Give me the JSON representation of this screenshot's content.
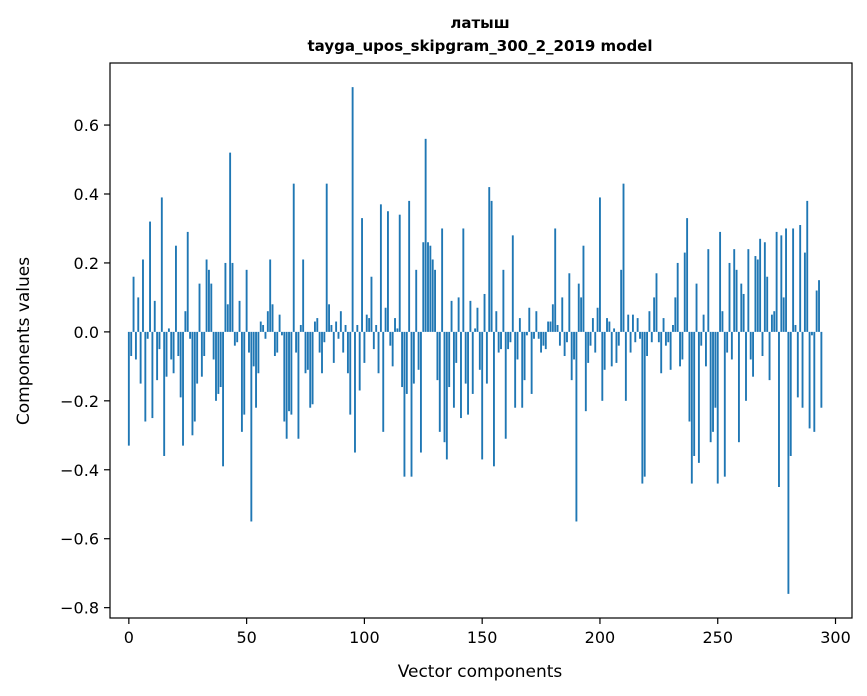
{
  "chart_data": {
    "type": "bar",
    "title": "латыш",
    "subtitle": "tayga_upos_skipgram_300_2_2019 model",
    "xlabel": "Vector components",
    "ylabel": "Components values",
    "xlim": [
      -8,
      307
    ],
    "ylim": [
      -0.83,
      0.78
    ],
    "xticks": [
      0,
      50,
      100,
      150,
      200,
      250,
      300
    ],
    "yticks": [
      -0.8,
      -0.6,
      -0.4,
      -0.2,
      0.0,
      0.2,
      0.4,
      0.6
    ],
    "ytick_labels": [
      "−0.8",
      "−0.6",
      "−0.4",
      "−0.2",
      "0.0",
      "0.2",
      "0.4",
      "0.6"
    ],
    "grid": false,
    "bar_color": "#1f77b4",
    "values": [
      -0.33,
      -0.07,
      0.16,
      -0.08,
      0.1,
      -0.15,
      0.21,
      -0.26,
      -0.02,
      0.32,
      -0.25,
      0.09,
      -0.14,
      -0.05,
      0.39,
      -0.36,
      -0.13,
      0.01,
      -0.08,
      -0.12,
      0.25,
      -0.07,
      -0.19,
      -0.33,
      0.06,
      0.29,
      -0.02,
      -0.3,
      -0.26,
      -0.15,
      0.14,
      -0.13,
      -0.07,
      0.21,
      0.18,
      0.14,
      -0.08,
      -0.2,
      -0.18,
      -0.16,
      -0.39,
      0.2,
      0.08,
      0.52,
      0.2,
      -0.04,
      -0.03,
      0.09,
      -0.29,
      -0.24,
      0.18,
      -0.06,
      -0.55,
      -0.1,
      -0.22,
      -0.12,
      0.03,
      0.02,
      -0.02,
      0.06,
      0.21,
      0.08,
      -0.07,
      -0.06,
      0.05,
      -0.01,
      -0.26,
      -0.31,
      -0.23,
      -0.24,
      0.43,
      -0.06,
      -0.31,
      0.02,
      0.21,
      -0.12,
      -0.11,
      -0.22,
      -0.21,
      0.03,
      0.04,
      -0.06,
      -0.12,
      -0.03,
      0.43,
      0.08,
      0.02,
      -0.09,
      0.03,
      -0.02,
      0.06,
      -0.06,
      0.02,
      -0.12,
      -0.24,
      0.71,
      -0.35,
      0.02,
      -0.17,
      0.33,
      -0.09,
      0.05,
      0.04,
      0.16,
      -0.05,
      0.02,
      -0.12,
      0.37,
      -0.29,
      0.07,
      0.35,
      -0.04,
      -0.1,
      0.04,
      0.01,
      0.34,
      -0.16,
      -0.42,
      -0.18,
      0.38,
      -0.42,
      -0.15,
      0.18,
      -0.11,
      -0.35,
      0.26,
      0.56,
      0.26,
      0.25,
      0.21,
      0.18,
      -0.14,
      -0.29,
      0.3,
      -0.32,
      -0.37,
      -0.16,
      0.09,
      -0.22,
      -0.09,
      0.1,
      -0.25,
      0.3,
      -0.15,
      -0.24,
      0.09,
      -0.18,
      0.01,
      0.07,
      -0.11,
      -0.37,
      0.11,
      -0.15,
      0.42,
      0.38,
      -0.39,
      0.06,
      -0.06,
      -0.05,
      0.18,
      -0.31,
      -0.05,
      -0.03,
      0.28,
      -0.22,
      -0.08,
      0.04,
      -0.22,
      -0.14,
      -0.01,
      0.07,
      -0.18,
      -0.02,
      0.06,
      -0.02,
      -0.06,
      -0.04,
      -0.05,
      0.03,
      0.03,
      0.08,
      0.3,
      0.02,
      -0.04,
      0.1,
      -0.07,
      -0.03,
      0.17,
      -0.14,
      -0.08,
      -0.55,
      0.14,
      0.1,
      0.25,
      -0.23,
      -0.09,
      -0.04,
      0.04,
      -0.06,
      0.07,
      0.39,
      -0.2,
      -0.11,
      0.04,
      0.03,
      -0.1,
      0.01,
      -0.09,
      -0.04,
      0.18,
      0.43,
      -0.2,
      0.05,
      -0.06,
      0.05,
      -0.03,
      0.04,
      -0.02,
      -0.44,
      -0.42,
      -0.07,
      0.06,
      -0.03,
      0.1,
      0.17,
      -0.03,
      -0.12,
      0.04,
      -0.04,
      -0.03,
      -0.11,
      0.02,
      0.1,
      0.2,
      -0.1,
      -0.08,
      0.23,
      0.33,
      -0.26,
      -0.44,
      -0.36,
      0.14,
      -0.38,
      -0.04,
      0.05,
      -0.1,
      0.24,
      -0.32,
      -0.29,
      -0.22,
      -0.44,
      0.29,
      0.06,
      -0.42,
      -0.06,
      0.2,
      -0.08,
      0.24,
      0.18,
      -0.32,
      0.14,
      0.11,
      -0.2,
      0.24,
      -0.08,
      -0.13,
      0.22,
      0.21,
      0.27,
      -0.07,
      0.26,
      0.16,
      -0.14,
      0.05,
      0.06,
      0.29,
      -0.45,
      0.28,
      0.1,
      0.3,
      -0.76,
      -0.36,
      0.3,
      0.02,
      -0.19,
      0.31,
      -0.22,
      0.23,
      0.38,
      -0.28,
      -0.01,
      -0.29,
      0.12,
      0.15,
      -0.22
    ]
  }
}
